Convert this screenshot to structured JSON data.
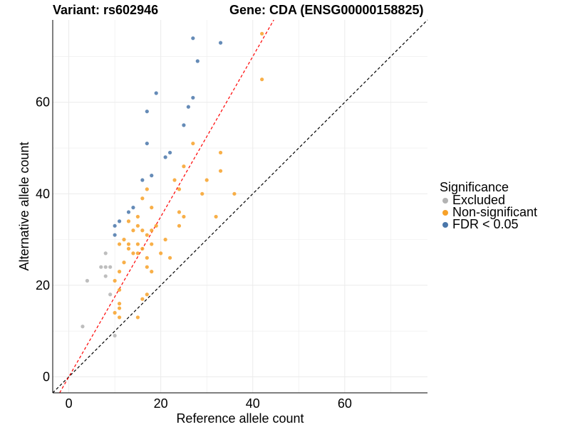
{
  "header": {
    "variant": "Variant: rs602946",
    "gene": "Gene: CDA (ENSG00000158825)"
  },
  "legend": {
    "title": "Significance",
    "items": [
      {
        "key": "Excluded",
        "label": "Excluded",
        "color": "#b3b3b3"
      },
      {
        "key": "Non-significant",
        "label": "Non-significant",
        "color": "#f7a128"
      },
      {
        "key": "FDR",
        "label": "FDR < 0.05",
        "color": "#4a77aa"
      }
    ]
  },
  "chart_data": {
    "type": "scatter",
    "xlabel": "Reference allele count",
    "ylabel": "Alternative allele count",
    "xlim": [
      -3.5,
      78
    ],
    "ylim": [
      -3.5,
      78
    ],
    "xticks": [
      0,
      20,
      40,
      60
    ],
    "yticks": [
      0,
      20,
      40,
      60
    ],
    "grid": true,
    "legend_position": "right",
    "reference_lines": [
      {
        "slope": 1,
        "intercept": 0,
        "color": "#000000",
        "style": "dashed"
      },
      {
        "slope": 1.75,
        "intercept": 0,
        "color": "#ff0000",
        "style": "dashed"
      }
    ],
    "series": [
      {
        "name": "Excluded",
        "color": "#b3b3b3",
        "points": [
          [
            3,
            11
          ],
          [
            4,
            21
          ],
          [
            7,
            24
          ],
          [
            8,
            27
          ],
          [
            8,
            24
          ],
          [
            8,
            22
          ],
          [
            9,
            24
          ],
          [
            9,
            18
          ],
          [
            10,
            9
          ]
        ]
      },
      {
        "name": "Non-significant",
        "color": "#f7a128",
        "points": [
          [
            42,
            75
          ],
          [
            42,
            65
          ],
          [
            27,
            51
          ],
          [
            33,
            49
          ],
          [
            25,
            46
          ],
          [
            33,
            45
          ],
          [
            30,
            43
          ],
          [
            23,
            43
          ],
          [
            17,
            41
          ],
          [
            24,
            41
          ],
          [
            29,
            40
          ],
          [
            36,
            40
          ],
          [
            16,
            39
          ],
          [
            18,
            37
          ],
          [
            15,
            35
          ],
          [
            24,
            36
          ],
          [
            25,
            35
          ],
          [
            32,
            35
          ],
          [
            13,
            34
          ],
          [
            15,
            33
          ],
          [
            19,
            33
          ],
          [
            24,
            33
          ],
          [
            14,
            32
          ],
          [
            16,
            32
          ],
          [
            18,
            32
          ],
          [
            17,
            31
          ],
          [
            12,
            30
          ],
          [
            21,
            30
          ],
          [
            11,
            29
          ],
          [
            13,
            29
          ],
          [
            15,
            29
          ],
          [
            18,
            29
          ],
          [
            13,
            28
          ],
          [
            16,
            28
          ],
          [
            14,
            27
          ],
          [
            20,
            27
          ],
          [
            15,
            27
          ],
          [
            17,
            26
          ],
          [
            22,
            26
          ],
          [
            17,
            24
          ],
          [
            11,
            23
          ],
          [
            18,
            23
          ],
          [
            10,
            21
          ],
          [
            11,
            19
          ],
          [
            17,
            18
          ],
          [
            16,
            17
          ],
          [
            11,
            16
          ],
          [
            11,
            15
          ],
          [
            10,
            14
          ],
          [
            15,
            13
          ],
          [
            11,
            13
          ],
          [
            12,
            25
          ]
        ]
      },
      {
        "name": "FDR < 0.05",
        "color": "#4a77aa",
        "points": [
          [
            27,
            74
          ],
          [
            33,
            73
          ],
          [
            28,
            69
          ],
          [
            19,
            62
          ],
          [
            27,
            61
          ],
          [
            26,
            59
          ],
          [
            17,
            58
          ],
          [
            25,
            55
          ],
          [
            17,
            51
          ],
          [
            22,
            49
          ],
          [
            21,
            48
          ],
          [
            18,
            44
          ],
          [
            16,
            43
          ],
          [
            14,
            37
          ],
          [
            13,
            36
          ],
          [
            11,
            34
          ],
          [
            10,
            33
          ],
          [
            10,
            31
          ]
        ]
      }
    ]
  }
}
